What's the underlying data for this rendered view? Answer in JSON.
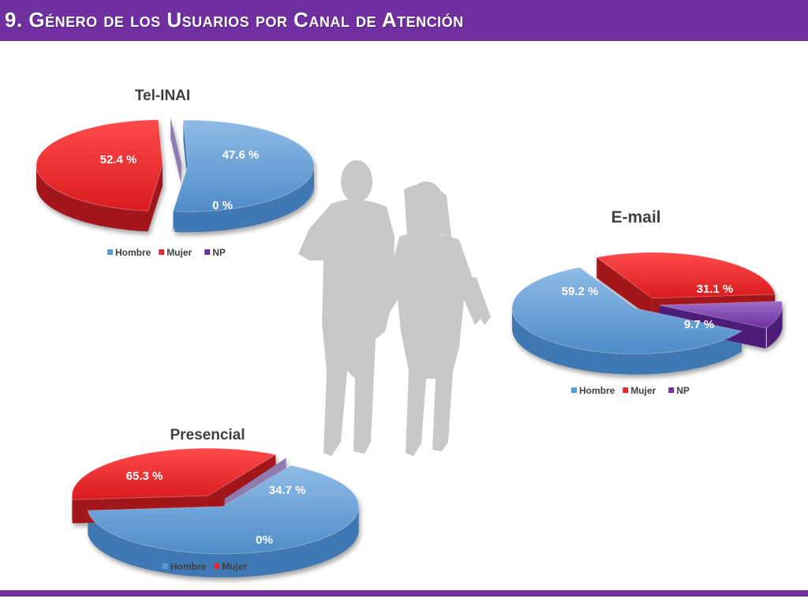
{
  "page": {
    "title": "9. Género de los Usuarios por Canal de Atención"
  },
  "colors": {
    "header": "#7030a0",
    "hombre": "#5b9bd5",
    "mujer": "#e8262b",
    "np": "#7030a0",
    "silhouette": "#c8c8c8"
  },
  "icons": {
    "background": "couple-silhouette"
  },
  "chart_data": [
    {
      "type": "pie",
      "title": "Tel-INAI",
      "categories": [
        "Hombre",
        "Mujer",
        "NP"
      ],
      "values": [
        52.4,
        47.6,
        0
      ],
      "labels": [
        "52.4 %",
        "47.6 %",
        "0 %"
      ],
      "legend": [
        "Hombre",
        "Mujer",
        "NP"
      ],
      "legend_position": "bottom",
      "style": "3d-exploded"
    },
    {
      "type": "pie",
      "title": "E-mail",
      "categories": [
        "Hombre",
        "Mujer",
        "NP"
      ],
      "values": [
        59.2,
        31.1,
        9.7
      ],
      "labels": [
        "59.2 %",
        "31.1 %",
        "9.7 %"
      ],
      "legend": [
        "Hombre",
        "Mujer",
        "NP"
      ],
      "legend_position": "bottom",
      "style": "3d-exploded"
    },
    {
      "type": "pie",
      "title": "Presencial",
      "categories": [
        "Hombre",
        "Mujer",
        "NP"
      ],
      "values": [
        65.3,
        34.7,
        0
      ],
      "labels": [
        "65.3 %",
        "34.7 %",
        "0%"
      ],
      "legend": [
        "Hombre",
        "Mujer"
      ],
      "legend_position": "bottom",
      "style": "3d-exploded"
    }
  ]
}
